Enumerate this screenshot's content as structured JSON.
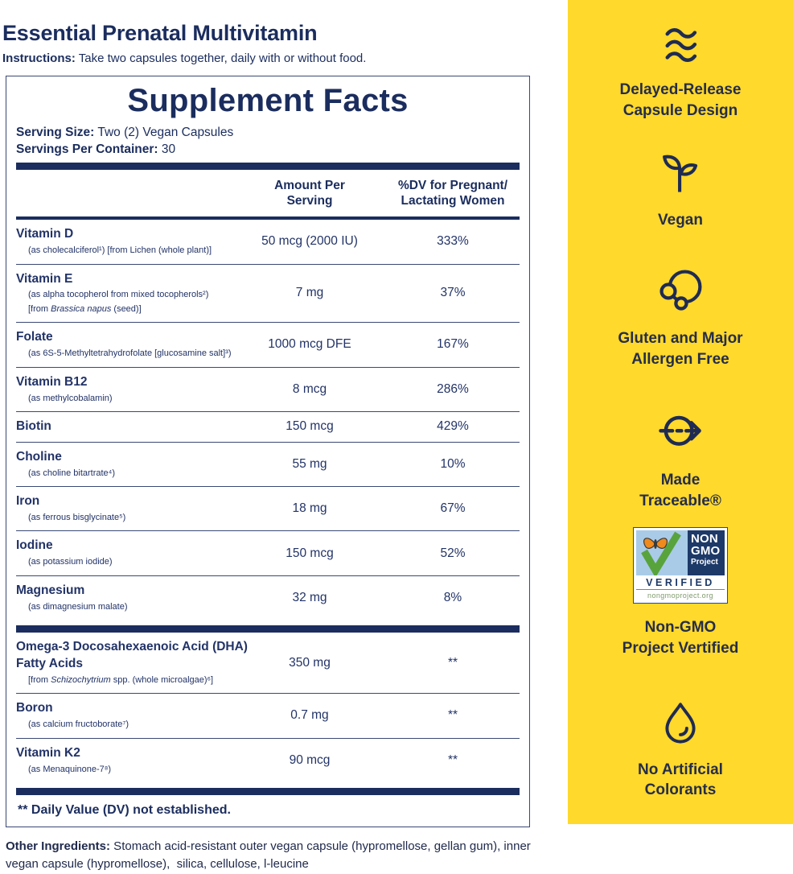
{
  "colors": {
    "yellow": "#FFD92C",
    "navy": "#1B2D5E",
    "table_navy": "#223367",
    "icon_navy": "#1F2B52",
    "side_text": "#262D47",
    "badge_navy": "#1D3968",
    "badge_green": "#59A33C",
    "badge_sky": "#A9CBE8",
    "badge_orange": "#F08A1D"
  },
  "header": {
    "title": "Essential Prenatal Multivitamin",
    "instructions_label": "Instructions:",
    "instructions_text": " Take two capsules together, daily with or without food."
  },
  "facts": {
    "title": "Supplement Facts",
    "serving_size_label": "Serving Size:",
    "serving_size_value": " Two (2) Vegan Capsules",
    "servings_per_container_label": "Servings Per Container:",
    "servings_per_container_value": " 30",
    "columns": {
      "amount": "Amount Per\nServing",
      "dv": "%DV for Pregnant/\nLactating Women"
    },
    "rows": [
      {
        "name": "Vitamin D",
        "subs": [
          [
            {
              "t": "(as cholecalciferol¹) [from Lichen (whole plant)]"
            }
          ]
        ],
        "amount": "50 mcg (2000 IU)",
        "dv": "333%"
      },
      {
        "name": "Vitamin E",
        "subs": [
          [
            {
              "t": "(as alpha tocopherol from mixed tocopherols²)"
            }
          ],
          [
            {
              "t": "[from "
            },
            {
              "t": "Brassica napus",
              "i": true
            },
            {
              "t": " (seed)]"
            }
          ]
        ],
        "amount": "7 mg",
        "dv": "37%"
      },
      {
        "name": "Folate",
        "subs": [
          [
            {
              "t": "(as 6S-5-Methyltetrahydrofolate [glucosamine salt]³)"
            }
          ]
        ],
        "amount": "1000 mcg DFE",
        "dv": "167%"
      },
      {
        "name": "Vitamin B12",
        "subs": [
          [
            {
              "t": "(as methylcobalamin)"
            }
          ]
        ],
        "amount": "8 mcg",
        "dv": "286%"
      },
      {
        "name": "Biotin",
        "subs": [],
        "amount": "150 mcg",
        "dv": "429%"
      },
      {
        "name": "Choline",
        "subs": [
          [
            {
              "t": "(as choline bitartrate⁴)"
            }
          ]
        ],
        "amount": "55 mg",
        "dv": "10%"
      },
      {
        "name": "Iron",
        "subs": [
          [
            {
              "t": "(as ferrous bisglycinate⁵)"
            }
          ]
        ],
        "amount": "18 mg",
        "dv": "67%"
      },
      {
        "name": "Iodine",
        "subs": [
          [
            {
              "t": "(as potassium iodide)"
            }
          ]
        ],
        "amount": "150 mcg",
        "dv": "52%"
      },
      {
        "name": "Magnesium",
        "subs": [
          [
            {
              "t": "(as dimagnesium malate)"
            }
          ]
        ],
        "amount": "32 mg",
        "dv": "8%",
        "thick_after": true
      },
      {
        "name": "Omega-3 Docosahexaenoic Acid (DHA)",
        "name2": "Fatty Acids",
        "subs": [
          [
            {
              "t": "[from "
            },
            {
              "t": "Schizochytrium",
              "i": true
            },
            {
              "t": " spp. (whole microalgae)⁶]"
            }
          ]
        ],
        "amount": "350 mg",
        "dv": "**"
      },
      {
        "name": "Boron",
        "subs": [
          [
            {
              "t": "(as calcium fructoborate⁷)"
            }
          ]
        ],
        "amount": "0.7 mg",
        "dv": "**"
      },
      {
        "name": "Vitamin K2",
        "subs": [
          [
            {
              "t": "(as Menaquinone-7⁸)"
            }
          ]
        ],
        "amount": "90 mcg",
        "dv": "**",
        "thick_after": true
      }
    ],
    "footnote": "** Daily Value (DV) not established."
  },
  "other_ingredients": {
    "label": "Other Ingredients:",
    "text": " Stomach acid-resistant outer vegan capsule (hypromellose, gellan gum), inner vegan capsule (hypromellose),  silica, cellulose, l-leucine"
  },
  "sidebar": {
    "features": [
      {
        "icon": "waves-icon",
        "label": "Delayed-Release\nCapsule Design"
      },
      {
        "icon": "sprout-icon",
        "label": "Vegan"
      },
      {
        "icon": "molecule-icon",
        "label": "Gluten and Major\nAllergen Free"
      },
      {
        "icon": "traceable-icon",
        "label": "Made\nTraceable®"
      },
      {
        "icon": "non-gmo-badge",
        "label": "Non-GMO\nProject Vertified",
        "badge": {
          "non": "NON",
          "gmo": "GMO",
          "project": "Project",
          "verified": "VERIFIED",
          "url": "nongmoproject.org"
        }
      },
      {
        "icon": "droplet-icon",
        "label": "No Artificial\nColorants"
      }
    ]
  }
}
